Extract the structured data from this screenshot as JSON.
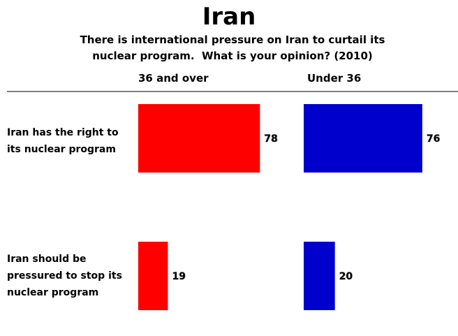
{
  "chart_data": {
    "type": "bar",
    "title": "Iran",
    "subtitle": "There is international pressure on Iran to curtail its nuclear program.  What is your opinion? (2010)",
    "categories": [
      "Iran has the right to its nuclear program",
      "Iran should be pressured to stop its nuclear program"
    ],
    "series": [
      {
        "name": "36 and over",
        "color": "#ff0000",
        "values": [
          78,
          19
        ]
      },
      {
        "name": "Under 36",
        "color": "#0000cc",
        "values": [
          76,
          20
        ]
      }
    ]
  }
}
